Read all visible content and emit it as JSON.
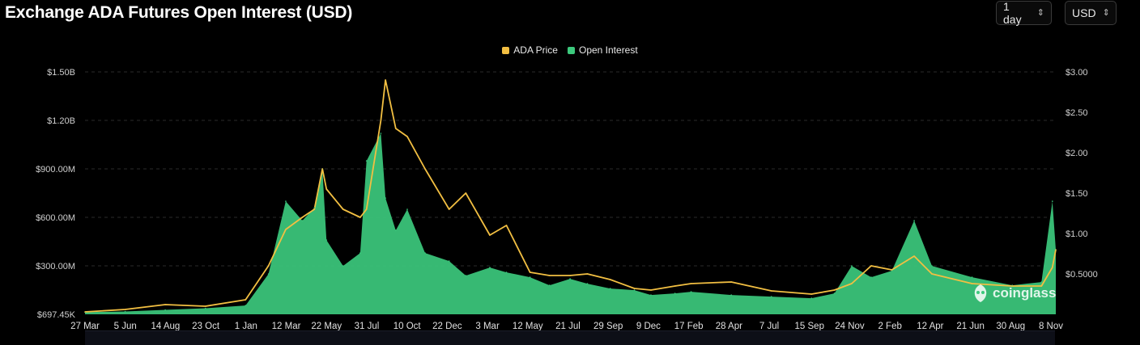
{
  "header": {
    "title": "Exchange ADA Futures Open Interest (USD)",
    "interval_select": "1 day",
    "currency_select": "USD"
  },
  "watermark": "coinglass",
  "colors": {
    "price": "#f2bf42",
    "open_interest": "#3cc97d",
    "background": "#000000",
    "grid": "#2a2a2a"
  },
  "chart_data": {
    "type": "area",
    "title": "Exchange ADA Futures Open Interest (USD)",
    "legend": [
      "ADA Price",
      "Open Interest"
    ],
    "legend_position": "top-center",
    "grid": true,
    "left_axis": {
      "ticks": [
        "$697.45K",
        "$300.00M",
        "$600.00M",
        "$900.00M",
        "$1.20B",
        "$1.50B"
      ],
      "range": [
        0.69745,
        1500
      ],
      "unit": "USD millions"
    },
    "right_axis": {
      "ticks": [
        "$0.5000",
        "$1.00",
        "$1.50",
        "$2.00",
        "$2.50",
        "$3.00"
      ],
      "range": [
        0,
        3.0
      ],
      "unit": "USD"
    },
    "x_tick_labels": [
      "27 Mar",
      "5 Jun",
      "14 Aug",
      "23 Oct",
      "1 Jan",
      "12 Mar",
      "22 May",
      "31 Jul",
      "10 Oct",
      "22 Dec",
      "3 Mar",
      "12 May",
      "21 Jul",
      "29 Sep",
      "9 Dec",
      "17 Feb",
      "28 Apr",
      "7 Jul",
      "15 Sep",
      "24 Nov",
      "2 Feb",
      "12 Apr",
      "21 Jun",
      "30 Aug",
      "8 Nov"
    ],
    "x": [
      "2020-03-27",
      "2020-06-05",
      "2020-08-14",
      "2020-10-23",
      "2021-01-01",
      "2021-02-10",
      "2021-03-12",
      "2021-04-10",
      "2021-05-01",
      "2021-05-15",
      "2021-05-22",
      "2021-06-20",
      "2021-07-20",
      "2021-07-31",
      "2021-08-25",
      "2021-09-02",
      "2021-09-20",
      "2021-10-10",
      "2021-11-10",
      "2021-12-22",
      "2022-01-20",
      "2022-03-03",
      "2022-04-01",
      "2022-05-12",
      "2022-06-15",
      "2022-07-21",
      "2022-08-20",
      "2022-09-29",
      "2022-11-10",
      "2022-12-09",
      "2023-01-20",
      "2023-02-17",
      "2023-04-28",
      "2023-07-07",
      "2023-09-15",
      "2023-10-25",
      "2023-11-24",
      "2023-12-28",
      "2024-02-02",
      "2024-03-12",
      "2024-04-12",
      "2024-06-21",
      "2024-08-30",
      "2024-10-20",
      "2024-11-08",
      "2024-11-14"
    ],
    "series": [
      {
        "name": "Open Interest",
        "axis": "left",
        "values": [
          14,
          18,
          28,
          38,
          55,
          250,
          700,
          580,
          660,
          900,
          460,
          300,
          380,
          950,
          1120,
          720,
          520,
          650,
          380,
          330,
          240,
          290,
          260,
          230,
          180,
          220,
          190,
          160,
          150,
          120,
          130,
          140,
          120,
          110,
          100,
          130,
          300,
          230,
          270,
          580,
          300,
          230,
          180,
          200,
          700,
          400
        ]
      },
      {
        "name": "ADA Price",
        "axis": "right",
        "values": [
          0.03,
          0.06,
          0.12,
          0.1,
          0.18,
          0.6,
          1.05,
          1.2,
          1.3,
          1.8,
          1.55,
          1.3,
          1.2,
          1.3,
          2.4,
          2.9,
          2.3,
          2.2,
          1.8,
          1.3,
          1.5,
          0.98,
          1.1,
          0.52,
          0.48,
          0.48,
          0.5,
          0.43,
          0.32,
          0.3,
          0.35,
          0.38,
          0.4,
          0.29,
          0.25,
          0.3,
          0.38,
          0.6,
          0.55,
          0.72,
          0.5,
          0.38,
          0.35,
          0.35,
          0.58,
          0.8
        ]
      }
    ]
  }
}
